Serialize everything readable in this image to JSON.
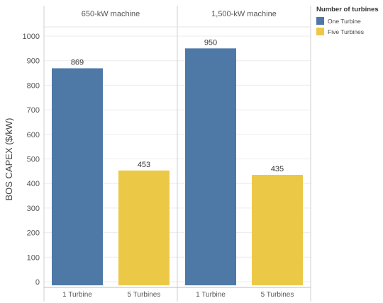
{
  "chart_data": {
    "type": "bar",
    "ylabel": "BOS CAPEX ($/kW)",
    "ylim": [
      0,
      1000
    ],
    "yticks": [
      0,
      100,
      200,
      300,
      400,
      500,
      600,
      700,
      800,
      900,
      1000
    ],
    "grid": true,
    "legend_position": "top-right",
    "legend": {
      "title": "Number of turbines",
      "items": [
        {
          "label": "One Turbine",
          "color": "#4e79a7"
        },
        {
          "label": "Five Turbines",
          "color": "#ecc847"
        }
      ]
    },
    "panels": [
      {
        "title": "650-kW machine",
        "categories": [
          "1 Turbine",
          "5 Turbines"
        ],
        "values": [
          869,
          453
        ],
        "colors": [
          "#4e79a7",
          "#ecc847"
        ]
      },
      {
        "title": "1,500-kW machine",
        "categories": [
          "1 Turbine",
          "5 Turbines"
        ],
        "values": [
          950,
          435
        ],
        "colors": [
          "#4e79a7",
          "#ecc847"
        ]
      }
    ]
  }
}
